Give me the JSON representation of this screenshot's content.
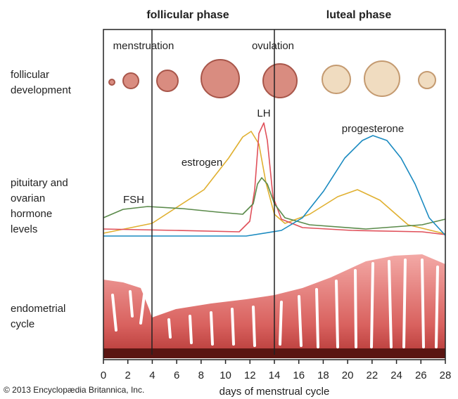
{
  "header": {
    "phases": [
      "follicular phase",
      "luteal phase"
    ]
  },
  "events": [
    "menstruation",
    "ovulation"
  ],
  "row_labels": [
    [
      "follicular",
      "development"
    ],
    [
      "pituitary and",
      "ovarian",
      "hormone",
      "levels"
    ],
    [
      "endometrial",
      "cycle"
    ]
  ],
  "curve_labels": {
    "lh": "LH",
    "progesterone": "progesterone",
    "estrogen": "estrogen",
    "fsh": "FSH"
  },
  "x_axis": {
    "ticks": [
      "0",
      "2",
      "4",
      "6",
      "8",
      "10",
      "12",
      "14",
      "16",
      "18",
      "20",
      "22",
      "24",
      "26",
      "28"
    ],
    "title": "days of menstrual cycle"
  },
  "credit": "© 2013 Encyclopædia Britannica, Inc."
}
